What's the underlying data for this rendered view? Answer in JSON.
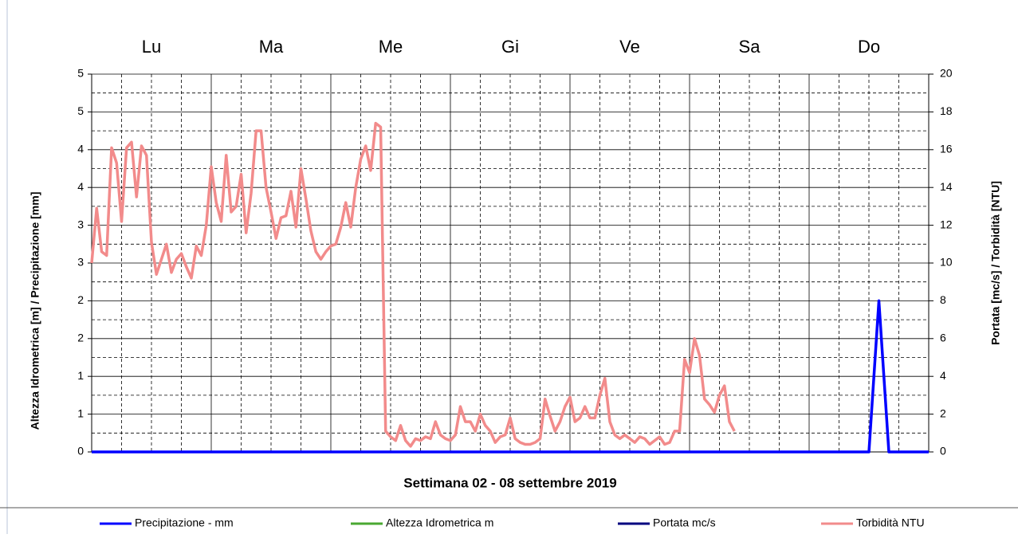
{
  "chart_data": {
    "type": "line",
    "categories": [
      "Lu",
      "Ma",
      "Me",
      "Gi",
      "Ve",
      "Sa",
      "Do"
    ],
    "xlabel": "Settimana 02 - 08 settembre 2019",
    "ylabel": "Altezza Idrometrica [m] / Precipitazione [mm]",
    "y2label": "Portata [mc/s] / Torbidità [NTU]",
    "xlim": [
      0,
      168
    ],
    "ylim": [
      0,
      5
    ],
    "yticks": [
      0,
      {
        "value": 0.5,
        "label": "1"
      },
      1,
      {
        "value": 1.5,
        "label": "2"
      },
      2,
      {
        "value": 2.5,
        "label": "3"
      },
      3,
      {
        "value": 3.5,
        "label": "4"
      },
      4,
      {
        "value": 4.5,
        "label": "5"
      },
      5
    ],
    "y2lim": [
      0,
      20
    ],
    "y2ticks": [
      0,
      2,
      4,
      6,
      8,
      10,
      12,
      14,
      16,
      18,
      20
    ],
    "grid": true,
    "legend": "bottom",
    "series": [
      {
        "name": "Precipitazione - mm",
        "color": "#0000ff",
        "x": [
          0,
          156,
          158,
          160,
          168
        ],
        "values": [
          0,
          0,
          2,
          0,
          0
        ]
      },
      {
        "name": "Altezza Idrometrica m",
        "color": "#4aa832"
      },
      {
        "name": "Portata mc/s",
        "color": "#00007f"
      },
      {
        "name": "Torbidità NTU",
        "color": "#f28b8b",
        "axis": "y2",
        "x": [
          0,
          1,
          2,
          3,
          4,
          5,
          6,
          7,
          8,
          9,
          10,
          11,
          12,
          13,
          14,
          15,
          16,
          17,
          18,
          19,
          20,
          21,
          22,
          23,
          24,
          25,
          26,
          27,
          28,
          29,
          30,
          31,
          32,
          33,
          34,
          35,
          36,
          37,
          38,
          39,
          40,
          41,
          42,
          43,
          44,
          45,
          46,
          47,
          48,
          49,
          50,
          51,
          52,
          53,
          54,
          55,
          56,
          57,
          58,
          59,
          60,
          61,
          62,
          63,
          64,
          65,
          66,
          67,
          68,
          69,
          70,
          71,
          72,
          73,
          74,
          75,
          76,
          77,
          78,
          79,
          80,
          81,
          82,
          83,
          84,
          85,
          86,
          87,
          88,
          89,
          90,
          91,
          92,
          93,
          94,
          95,
          96,
          97,
          98,
          99,
          100,
          101,
          102,
          103,
          104,
          105,
          106,
          107,
          108,
          109,
          110,
          111,
          112,
          113,
          114,
          115,
          116,
          117,
          118,
          119,
          120,
          121,
          122,
          123,
          124,
          125,
          126,
          127,
          128,
          129
        ],
        "values": [
          10,
          12.9,
          10.6,
          10.4,
          16.1,
          15.3,
          12.2,
          16.1,
          16.4,
          13.5,
          16.2,
          15.7,
          11.1,
          9.4,
          10.2,
          11.0,
          9.5,
          10.2,
          10.5,
          9.8,
          9.2,
          10.9,
          10.4,
          12.0,
          15.1,
          13.2,
          12.2,
          15.7,
          12.7,
          13.0,
          14.7,
          11.6,
          13.7,
          17.0,
          17.0,
          14.0,
          12.7,
          11.3,
          12.4,
          12.5,
          13.8,
          11.9,
          15.0,
          13.4,
          11.7,
          10.6,
          10.2,
          10.6,
          10.9,
          11.0,
          11.9,
          13.2,
          11.9,
          14.0,
          15.5,
          16.2,
          14.9,
          17.4,
          17.2,
          1.1,
          0.8,
          0.6,
          1.4,
          0.6,
          0.3,
          0.7,
          0.6,
          0.8,
          0.7,
          1.6,
          0.9,
          0.7,
          0.6,
          0.9,
          2.4,
          1.6,
          1.6,
          1.1,
          2.0,
          1.4,
          1.1,
          0.5,
          0.8,
          0.9,
          1.8,
          0.7,
          0.5,
          0.4,
          0.4,
          0.5,
          0.7,
          2.8,
          1.9,
          1.1,
          1.6,
          2.4,
          2.9,
          1.6,
          1.8,
          2.4,
          1.8,
          1.8,
          3.0,
          3.9,
          1.6,
          0.9,
          0.7,
          0.9,
          0.7,
          0.5,
          0.8,
          0.7,
          0.4,
          0.6,
          0.8,
          0.4,
          0.5,
          1.1,
          1.1,
          4.9,
          4.2,
          6.0,
          5.1,
          2.8,
          2.5,
          2.1,
          3.0,
          3.5,
          1.6,
          1.1
        ]
      }
    ]
  }
}
